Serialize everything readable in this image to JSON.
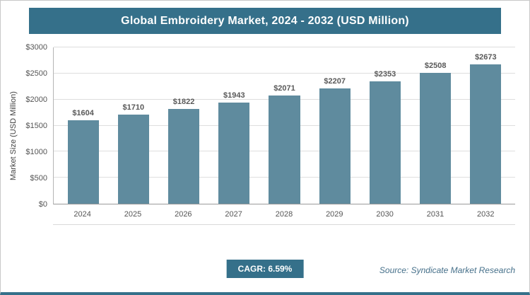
{
  "chart_data": {
    "type": "bar",
    "title": "Global Embroidery Market, 2024 - 2032 (USD Million)",
    "categories": [
      "2024",
      "2025",
      "2026",
      "2027",
      "2028",
      "2029",
      "2030",
      "2031",
      "2032"
    ],
    "values": [
      1604,
      1710,
      1822,
      1943,
      2071,
      2207,
      2353,
      2508,
      2673
    ],
    "value_labels": [
      "$1604",
      "$1710",
      "$1822",
      "$1943",
      "$2071",
      "$2207",
      "$2353",
      "$2508",
      "$2673"
    ],
    "xlabel": "",
    "ylabel": "Market Size (USD Million)",
    "ylim": [
      0,
      3000
    ],
    "yticks": [
      {
        "value": 0,
        "label": "$0"
      },
      {
        "value": 500,
        "label": "$500"
      },
      {
        "value": 1000,
        "label": "$1000"
      },
      {
        "value": 1500,
        "label": "$1500"
      },
      {
        "value": 2000,
        "label": "$2000"
      },
      {
        "value": 2500,
        "label": "$2500"
      },
      {
        "value": 3000,
        "label": "$3000"
      }
    ],
    "grid": true,
    "legend_position": "none",
    "bar_color": "#5f8b9e"
  },
  "footer": {
    "cagr_label": "CAGR: 6.59%",
    "source": "Source: Syndicate Market Research"
  },
  "colors": {
    "accent": "#35708a",
    "bar": "#5f8b9e",
    "gridline": "#dedede",
    "label_text": "#595959"
  }
}
